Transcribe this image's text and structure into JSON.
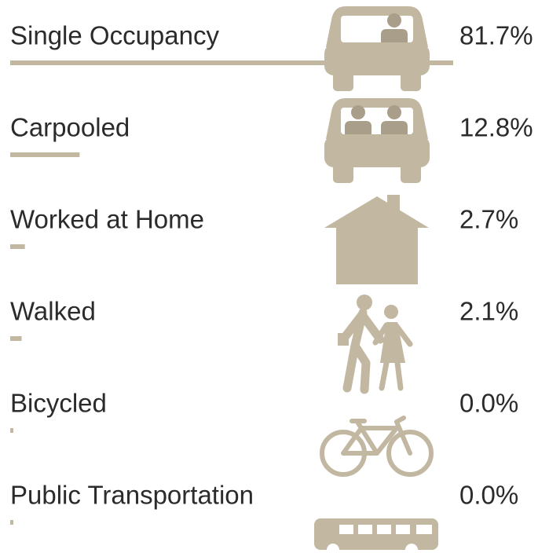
{
  "chart_data": {
    "type": "bar",
    "categories": [
      "Single Occupancy",
      "Carpooled",
      "Worked at Home",
      "Walked",
      "Bicycled",
      "Public Transportation"
    ],
    "values": [
      81.7,
      12.8,
      2.7,
      2.1,
      0.0,
      0.0
    ],
    "value_labels": [
      "81.7%",
      "12.8%",
      "2.7%",
      "2.1%",
      "0.0%",
      "0.0%"
    ],
    "color": "#c2b7a1"
  }
}
